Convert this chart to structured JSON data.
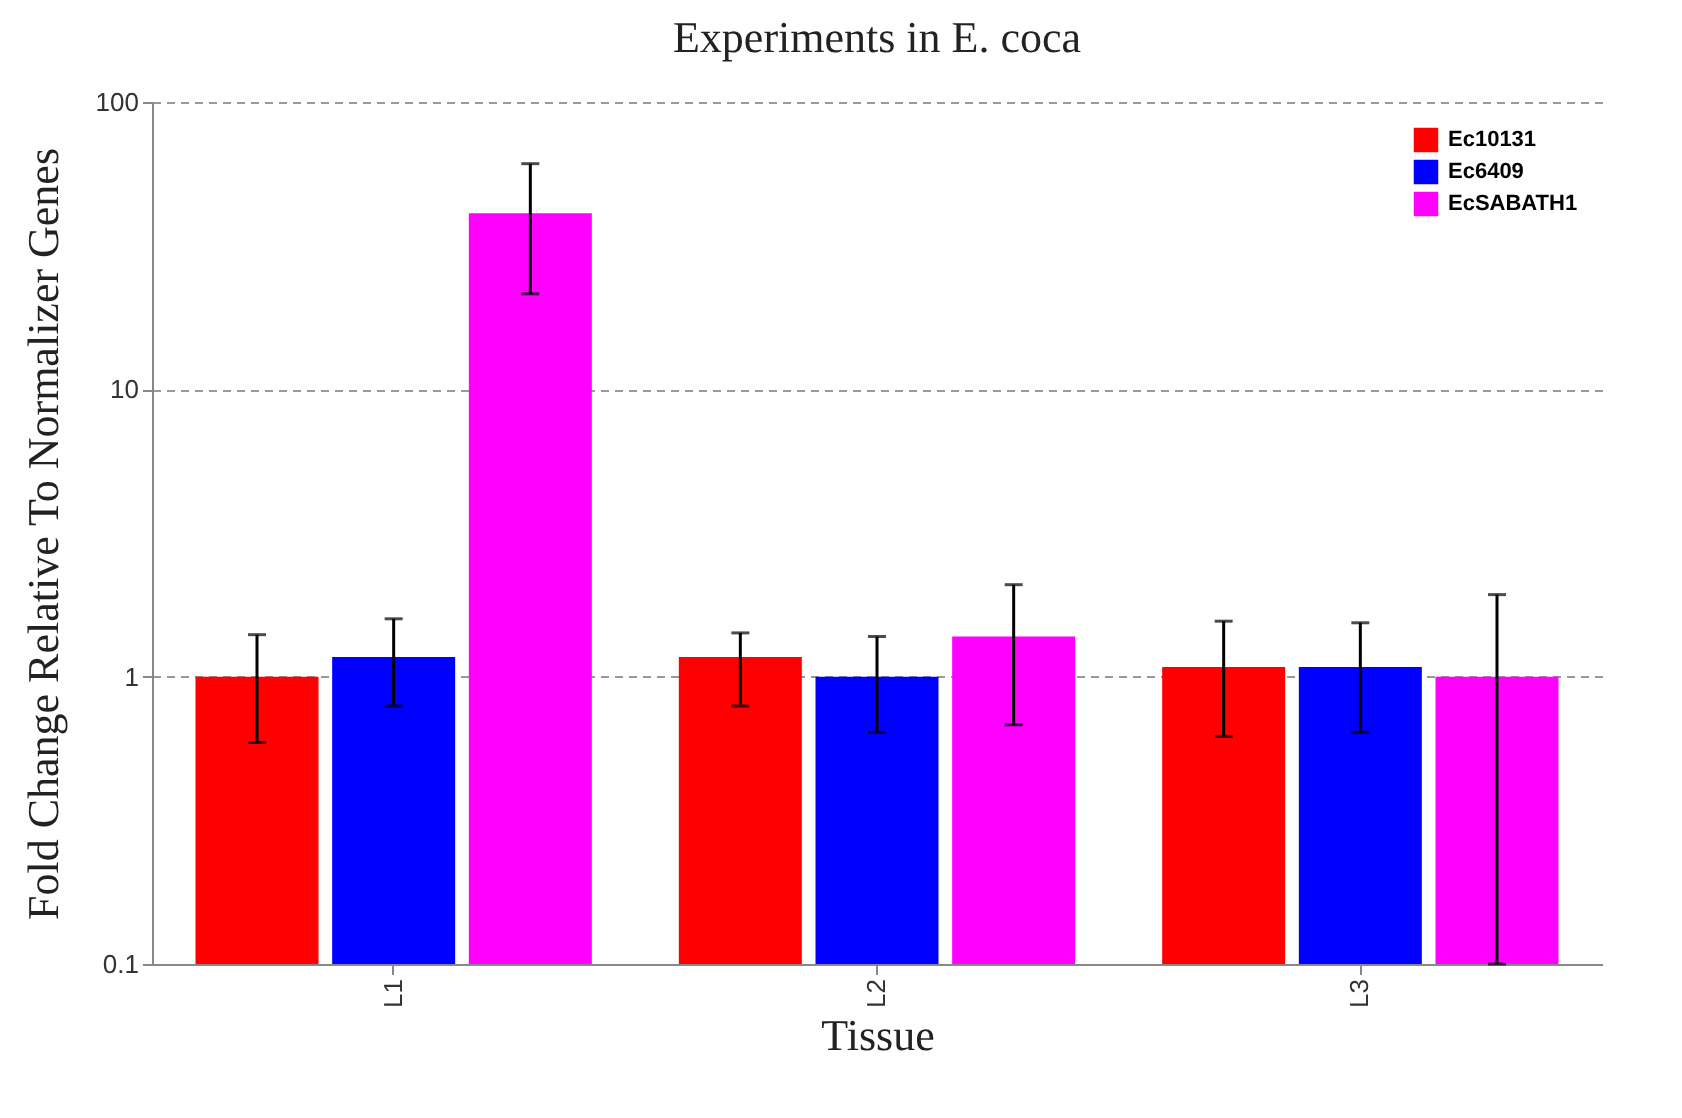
{
  "chart_data": {
    "type": "bar",
    "title": "Experiments in E. coca",
    "xlabel": "Tissue",
    "ylabel": "Fold Change Relative To Normalizer Genes",
    "categories": [
      "L1",
      "L2",
      "L3"
    ],
    "series": [
      {
        "name": "Ec10131",
        "color": "#ff0000",
        "values": [
          1.0,
          1.17,
          1.08
        ],
        "errors": [
          [
            0.59,
            1.4
          ],
          [
            0.79,
            1.42
          ],
          [
            0.62,
            1.56
          ]
        ]
      },
      {
        "name": "Ec6409",
        "color": "#0000ff",
        "values": [
          1.17,
          1.0,
          1.08
        ],
        "errors": [
          [
            0.79,
            1.59
          ],
          [
            0.64,
            1.38
          ],
          [
            0.64,
            1.54
          ]
        ]
      },
      {
        "name": "EcSABATH1",
        "color": "#ff00ff",
        "values": [
          41,
          1.38,
          1.0
        ],
        "errors": [
          [
            21.5,
            61
          ],
          [
            0.68,
            2.09
          ],
          [
            0.1,
            1.93
          ]
        ]
      }
    ],
    "log": "y",
    "ylim": [
      0.1,
      100
    ],
    "yticks": [
      0.1,
      1,
      10,
      100
    ],
    "grid": "y",
    "legend": "top right"
  }
}
